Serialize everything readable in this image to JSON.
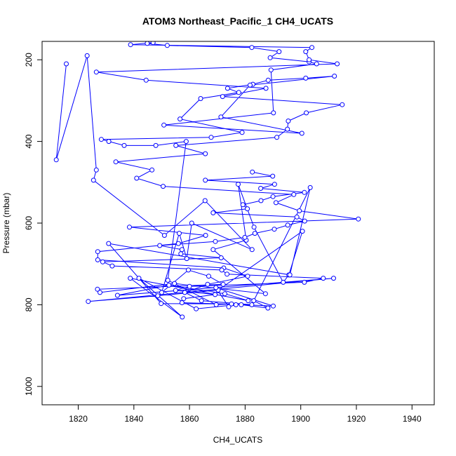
{
  "chart_data": {
    "type": "line",
    "title": "ATOM3 Northeast_Pacific_1 CH4_UCATS",
    "xlabel": "CH4_UCATS",
    "ylabel": "Pressure (mbar)",
    "xlim": [
      1807,
      1948
    ],
    "ylim": [
      1045,
      155
    ],
    "y_reversed": true,
    "x_ticks": [
      1820,
      1840,
      1860,
      1880,
      1900,
      1920,
      1940
    ],
    "y_ticks": [
      200,
      400,
      600,
      800,
      1000
    ],
    "grid": false,
    "legend": "none",
    "series_color": "#0000ff",
    "series": [
      {
        "x": [
          1815.7,
          1812.1,
          1823.2,
          1826.5,
          1825.5,
          1851.0,
          1865.6,
          1882.5,
          1860.8,
          1859.0,
          1856.3,
          1850.0,
          1859.6,
          1866.9,
          1872.1,
          1826.9,
          1827.8,
          1854.6,
          1887.3,
          1868.5,
          1880.4,
          1877.5,
          1883.2,
          1893.7,
          1895.7,
          1900.6,
          1870.3,
          1848.6,
          1823.6,
          1911.8,
          1834.1,
          1852.6,
          1872.7,
          1881.1,
          1838.7,
          1857.4,
          1841.8,
          1862.4,
          1876.7,
          1874.1,
          1869.5,
          1890.1,
          1878.6,
          1888.2,
          1883.1,
          1903.4,
          1896.1,
          1830.9,
          1849.8,
          1875.1,
          1869.6,
          1852.2,
          1858.8,
          1847.9,
          1836.5,
          1831.0,
          1828.3,
          1867.8,
          1878.9,
          1856.6,
          1864.0,
          1877.7,
          1873.7,
          1882.8,
          1888.3,
          1901.8,
          1912.1,
          1881.8,
          1871.3,
          1900.4,
          1850.8,
          1890.2,
          1889.3,
          1905.7,
          1903.0,
          1889.0,
          1892.2,
          1882.4,
          1852.0,
          1844.8,
          1846.9,
          1838.8,
          1904.0,
          1901.8,
          1903.0,
          1913.1,
          1826.5,
          1844.4,
          1887.5,
          1871.9,
          1914.9,
          1902.0,
          1895.5,
          1895.2,
          1891.4,
          1855.1,
          1865.7,
          1833.5,
          1846.5,
          1841.0,
          1850.5,
          1897.5,
          1891.1,
          1899.5,
          1920.7,
          1838.4,
          1865.8,
          1856.0,
          1827.0,
          1827.0,
          1872.3,
          1880.9,
          1866.5,
          1858.3,
          1864.3,
          1882.4,
          1857.3,
          1857.9,
          1869.2,
          1855.0,
          1860.0,
          1901.3,
          1908.1,
          1873.5,
          1871.6,
          1832.2,
          1828.8,
          1871.4,
          1856.9,
          1857.3,
          1849.3,
          1869.3,
          1879.9,
          1883.5,
          1890.5,
          1895.3,
          1901.4,
          1898.6,
          1868.5,
          1880.8,
          1879.2,
          1885.7,
          1890.0,
          1901.3,
          1885.6,
          1890.6,
          1865.7,
          1889.9,
          1882.6
        ],
        "y": [
          210,
          445,
          190,
          470,
          495,
          630,
          545,
          665,
          600,
          687,
          625,
          770,
          715,
          730,
          750,
          762,
          770,
          748,
          773,
          665,
          642,
          505,
          610,
          745,
          727,
          620,
          764,
          778,
          792,
          735,
          777,
          752,
          773,
          790,
          735,
          830,
          735,
          810,
          800,
          805,
          758,
          803,
          800,
          808,
          790,
          513,
          727,
          650,
          797,
          798,
          800,
          740,
          400,
          410,
          410,
          400,
          395,
          390,
          378,
          345,
          295,
          280,
          270,
          260,
          250,
          245,
          240,
          262,
          340,
          380,
          360,
          330,
          225,
          210,
          205,
          195,
          180,
          170,
          165,
          160,
          158,
          163,
          170,
          180,
          200,
          210,
          230,
          250,
          270,
          290,
          310,
          330,
          350,
          370,
          390,
          410,
          430,
          450,
          470,
          490,
          510,
          530,
          550,
          570,
          590,
          610,
          630,
          650,
          670,
          690,
          710,
          730,
          750,
          770,
          790,
          800,
          795,
          785,
          775,
          765,
          755,
          745,
          735,
          725,
          715,
          705,
          695,
          685,
          675,
          665,
          655,
          645,
          635,
          625,
          615,
          605,
          595,
          585,
          575,
          565,
          555,
          545,
          535,
          525,
          515,
          505,
          495,
          485,
          475
        ]
      }
    ]
  }
}
